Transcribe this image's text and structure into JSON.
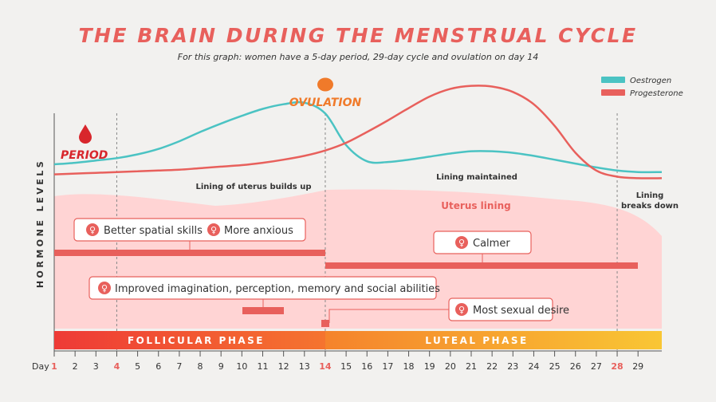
{
  "header": {
    "title": "THE BRAIN DURING THE MENSTRUAL CYCLE",
    "subtitle": "For this graph: women have a 5-day period, 29-day cycle and ovulation on day 14"
  },
  "chart_data": {
    "type": "line",
    "ylabel": "HORMONE LEVELS",
    "xlabel": "Day",
    "x": [
      1,
      2,
      3,
      4,
      5,
      6,
      7,
      8,
      9,
      10,
      11,
      12,
      13,
      14,
      15,
      16,
      17,
      18,
      19,
      20,
      21,
      22,
      23,
      24,
      25,
      26,
      27,
      28,
      29
    ],
    "x_label_prefix": "Day",
    "highlight_days": [
      1,
      4,
      14,
      28
    ],
    "series": [
      {
        "name": "Oestrogen",
        "color": "#4bc3c3",
        "values": [
          0.3,
          0.32,
          0.35,
          0.38,
          0.43,
          0.5,
          0.6,
          0.72,
          0.83,
          0.93,
          1.02,
          1.08,
          1.1,
          0.96,
          0.55,
          0.34,
          0.33,
          0.36,
          0.4,
          0.44,
          0.47,
          0.47,
          0.45,
          0.41,
          0.36,
          0.31,
          0.26,
          0.22,
          0.2
        ]
      },
      {
        "name": "Progesterone",
        "color": "#e8605c",
        "values": [
          0.17,
          0.18,
          0.19,
          0.2,
          0.21,
          0.22,
          0.23,
          0.25,
          0.27,
          0.29,
          0.32,
          0.36,
          0.41,
          0.48,
          0.58,
          0.72,
          0.87,
          1.03,
          1.18,
          1.28,
          1.32,
          1.31,
          1.24,
          1.08,
          0.8,
          0.45,
          0.22,
          0.14,
          0.12
        ]
      }
    ],
    "legend": {
      "placement": "top-right"
    }
  },
  "markers": {
    "period": "PERIOD",
    "ovulation": "OVULATION"
  },
  "annotations": {
    "lining_builds": "Lining of uterus builds up",
    "lining_maintained": "Lining maintained",
    "lining_breaks_1": "Lining",
    "lining_breaks_2": "breaks down",
    "uterus_lining": "Uterus lining"
  },
  "effects": {
    "spatial": "Better spatial skills",
    "anxious": "More anxious",
    "calmer": "Calmer",
    "imagination": "Improved imagination, perception, memory and social abilities",
    "desire": "Most sexual desire"
  },
  "phases": {
    "follicular": "FOLLICULAR PHASE",
    "luteal": "LUTEAL PHASE"
  },
  "colors": {
    "accent": "#e8605c",
    "teal": "#4bc3c3",
    "ovulation": "#f07a2a",
    "lining": "#ffd4d4"
  }
}
